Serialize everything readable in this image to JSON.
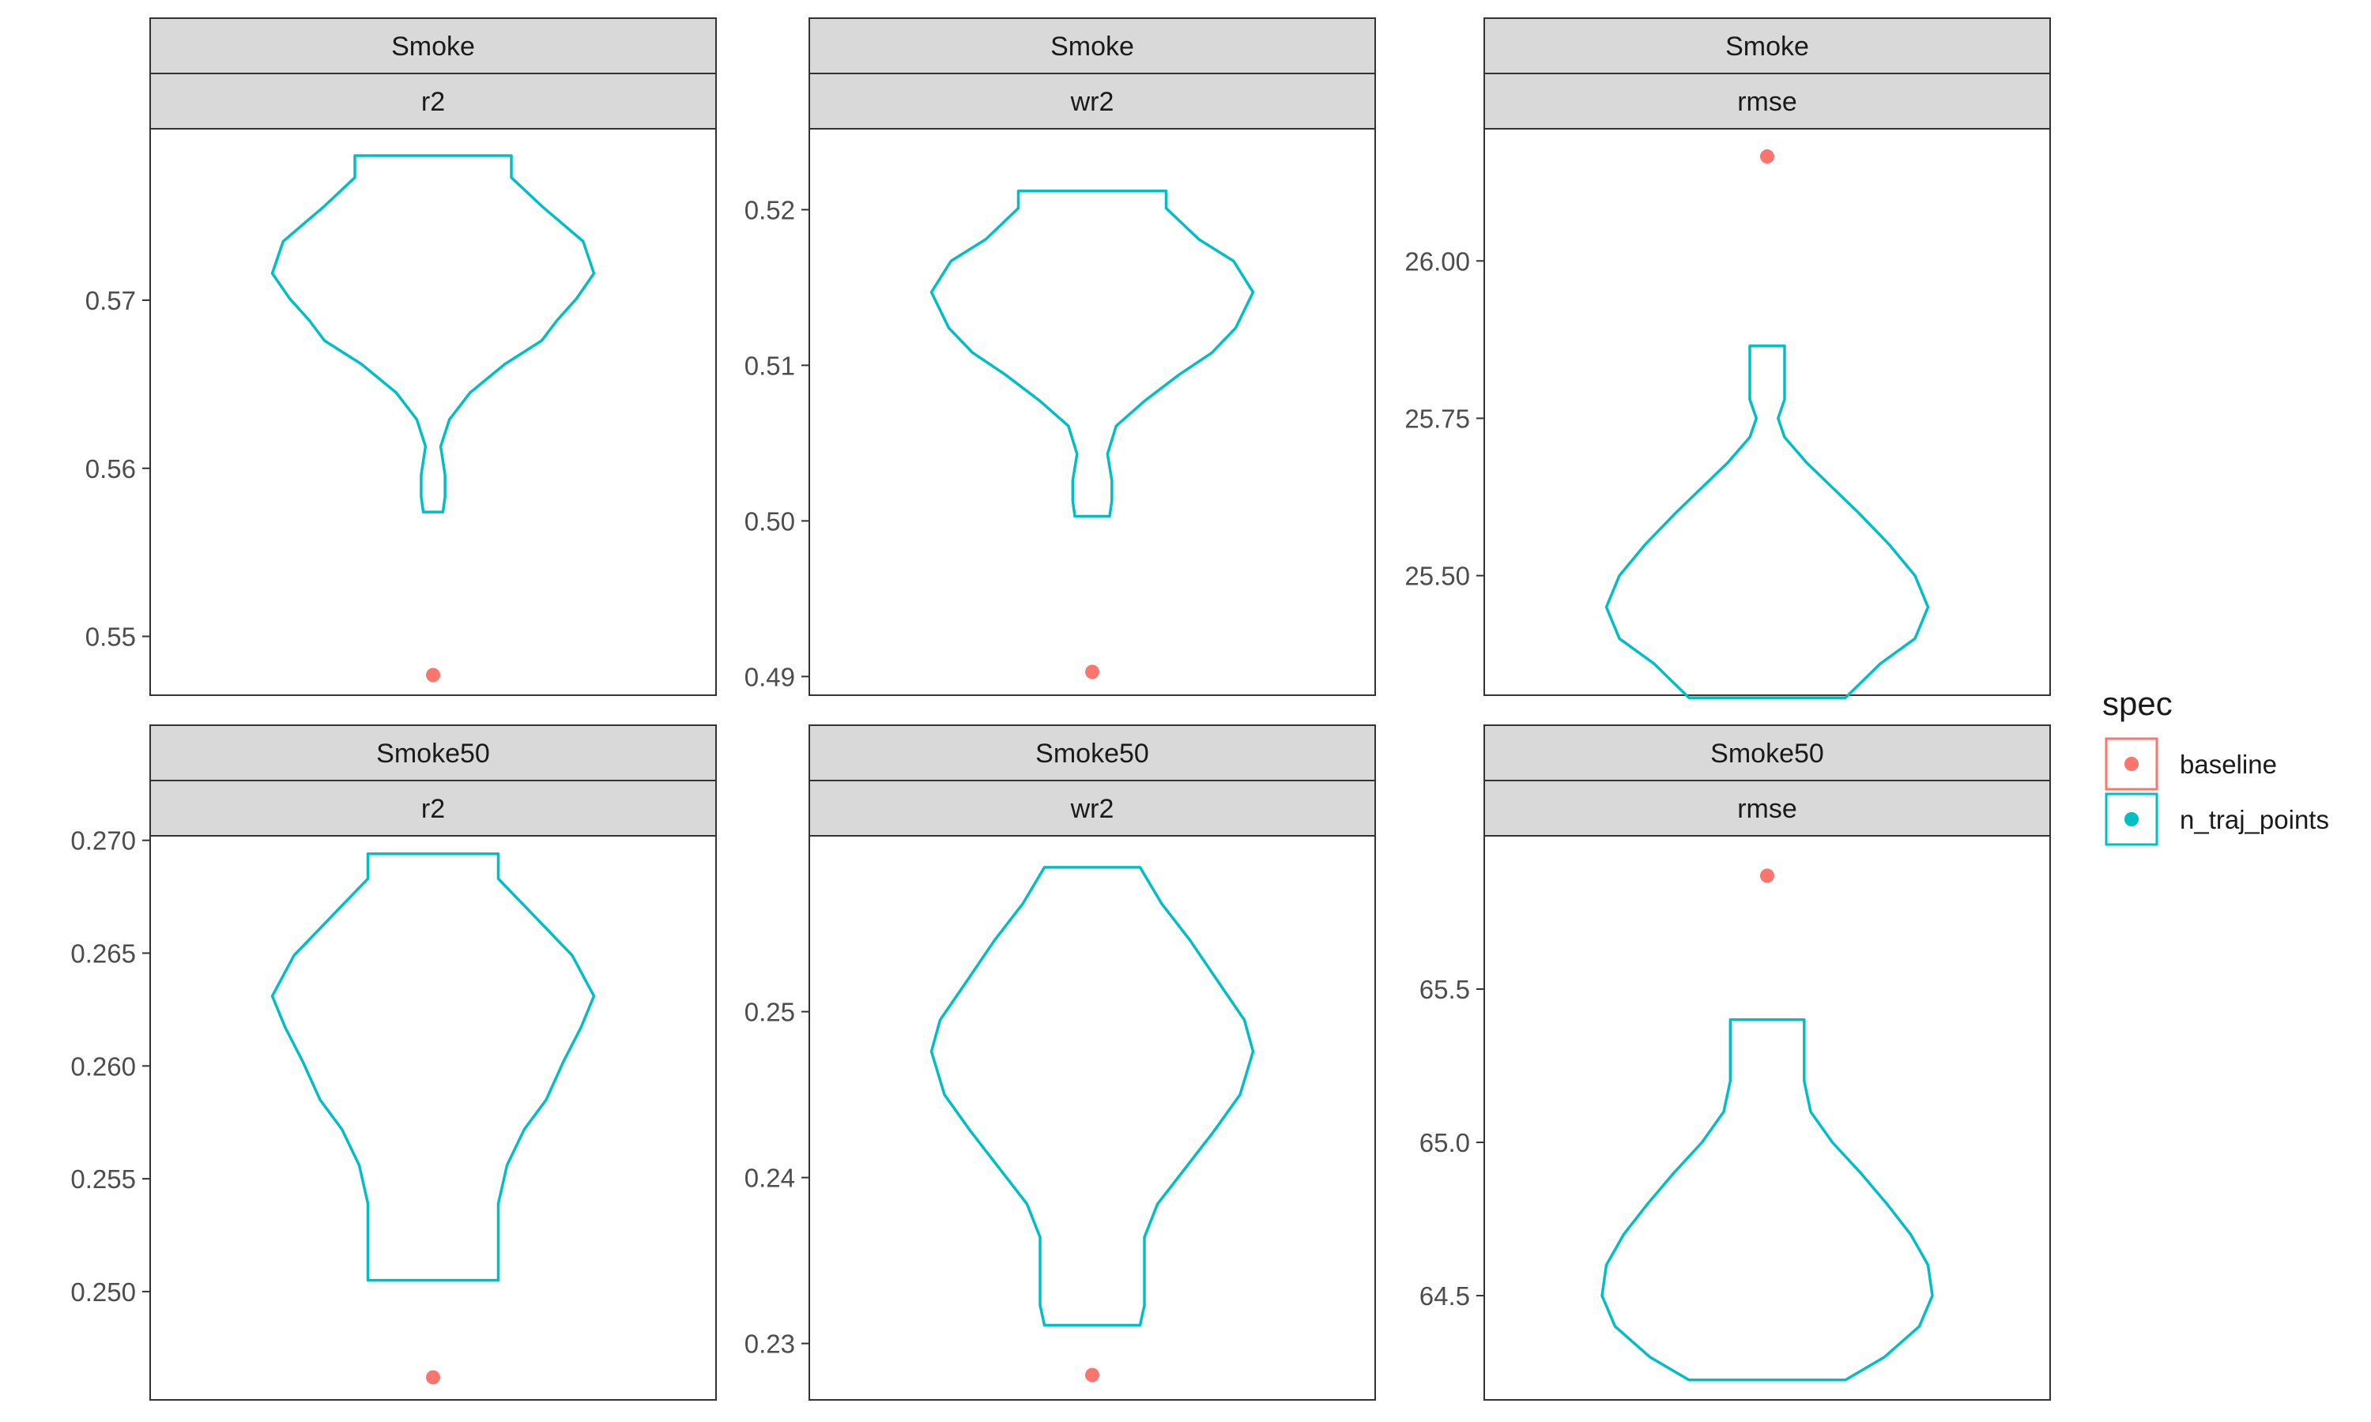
{
  "chart_data": {
    "type": "violin",
    "colors": {
      "baseline": "#F8766D",
      "n_traj_points": "#00BFC4"
    },
    "legend": {
      "title": "spec",
      "placement": "right",
      "entries": [
        {
          "label": "baseline",
          "color": "#F8766D"
        },
        {
          "label": "n_traj_points",
          "color": "#00BFC4"
        }
      ]
    },
    "panels": [
      {
        "strip_top": "Smoke",
        "strip_bottom": "r2",
        "ylim": [
          0.5465,
          0.5802
        ],
        "yticks": [
          0.55,
          0.56,
          0.57
        ],
        "ytick_labels": [
          "0.55",
          "0.56",
          "0.57"
        ],
        "baseline": 0.5477,
        "violin": {
          "levels": [
            0.5574,
            0.5583,
            0.5596,
            0.5613,
            0.5629,
            0.5645,
            0.5662,
            0.5676,
            0.5688,
            0.5701,
            0.5716,
            0.5735,
            0.5756,
            0.5773,
            0.5786
          ],
          "half_widths": [
            0.045,
            0.055,
            0.055,
            0.035,
            0.075,
            0.17,
            0.33,
            0.5,
            0.57,
            0.66,
            0.74,
            0.69,
            0.5,
            0.36,
            0.36
          ]
        }
      },
      {
        "strip_top": "Smoke",
        "strip_bottom": "wr2",
        "ylim": [
          0.4888,
          0.5252
        ],
        "yticks": [
          0.49,
          0.5,
          0.51,
          0.52
        ],
        "ytick_labels": [
          "0.49",
          "0.50",
          "0.51",
          "0.52"
        ],
        "baseline": 0.4903,
        "violin": {
          "levels": [
            0.5003,
            0.5013,
            0.5026,
            0.5043,
            0.5061,
            0.5077,
            0.5094,
            0.5108,
            0.5124,
            0.5147,
            0.5167,
            0.5181,
            0.5201,
            0.5212
          ],
          "half_widths": [
            0.08,
            0.09,
            0.09,
            0.07,
            0.11,
            0.24,
            0.4,
            0.55,
            0.66,
            0.74,
            0.65,
            0.49,
            0.34,
            0.34
          ]
        }
      },
      {
        "strip_top": "Smoke",
        "strip_bottom": "rmse",
        "ylim": [
          25.31,
          26.21
        ],
        "yticks": [
          25.5,
          25.75,
          26.0
        ],
        "ytick_labels": [
          "25.50",
          "25.75",
          "26.00"
        ],
        "baseline": 26.166,
        "violin": {
          "levels": [
            25.306,
            25.36,
            25.4,
            25.45,
            25.5,
            25.55,
            25.6,
            25.64,
            25.68,
            25.72,
            25.75,
            25.78,
            25.82,
            25.865
          ],
          "half_widths": [
            0.36,
            0.52,
            0.68,
            0.74,
            0.68,
            0.56,
            0.42,
            0.3,
            0.18,
            0.08,
            0.05,
            0.08,
            0.08,
            0.08
          ]
        }
      },
      {
        "strip_top": "Smoke50",
        "strip_bottom": "r2",
        "ylim": [
          0.2452,
          0.2702
        ],
        "yticks": [
          0.25,
          0.255,
          0.26,
          0.265,
          0.27
        ],
        "ytick_labels": [
          "0.250",
          "0.255",
          "0.260",
          "0.265",
          "0.270"
        ],
        "baseline": 0.2462,
        "violin": {
          "levels": [
            0.2505,
            0.2514,
            0.2524,
            0.2539,
            0.2556,
            0.2572,
            0.2585,
            0.2602,
            0.2617,
            0.2631,
            0.2649,
            0.2669,
            0.2683,
            0.2694
          ],
          "half_widths": [
            0.3,
            0.3,
            0.3,
            0.3,
            0.34,
            0.42,
            0.52,
            0.6,
            0.68,
            0.74,
            0.64,
            0.44,
            0.3,
            0.3
          ]
        }
      },
      {
        "strip_top": "Smoke50",
        "strip_bottom": "wr2",
        "ylim": [
          0.2266,
          0.2606
        ],
        "yticks": [
          0.23,
          0.24,
          0.25
        ],
        "ytick_labels": [
          "0.23",
          "0.24",
          "0.25"
        ],
        "baseline": 0.2281,
        "violin": {
          "levels": [
            0.2311,
            0.2323,
            0.2343,
            0.2364,
            0.2384,
            0.2406,
            0.2428,
            0.245,
            0.2476,
            0.2495,
            0.2516,
            0.2543,
            0.2565,
            0.2587
          ],
          "half_widths": [
            0.22,
            0.24,
            0.24,
            0.24,
            0.3,
            0.43,
            0.56,
            0.68,
            0.74,
            0.7,
            0.59,
            0.45,
            0.32,
            0.22
          ]
        }
      },
      {
        "strip_top": "Smoke50",
        "strip_bottom": "rmse",
        "ylim": [
          64.16,
          66.0
        ],
        "yticks": [
          64.5,
          65.0,
          65.5
        ],
        "ytick_labels": [
          "64.5",
          "65.0",
          "65.5"
        ],
        "baseline": 65.87,
        "violin": {
          "levels": [
            64.225,
            64.3,
            64.4,
            64.5,
            64.6,
            64.7,
            64.8,
            64.9,
            65.0,
            65.1,
            65.2,
            65.3,
            65.4
          ],
          "half_widths": [
            0.36,
            0.54,
            0.7,
            0.76,
            0.74,
            0.66,
            0.55,
            0.43,
            0.3,
            0.2,
            0.17,
            0.17,
            0.17
          ]
        }
      }
    ]
  }
}
